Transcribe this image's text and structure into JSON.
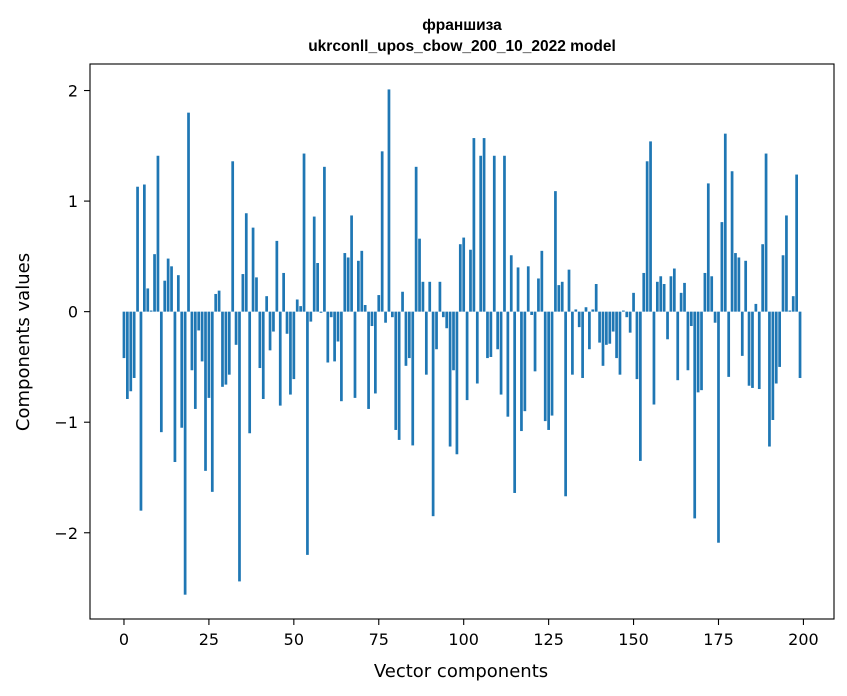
{
  "chart_data": {
    "type": "bar",
    "title_line1": "франшиза",
    "title_line2": "ukrconll_upos_cbow_200_10_2022 model",
    "xlabel": "Vector components",
    "ylabel": "Components values",
    "xlim": [
      -10,
      209
    ],
    "ylim": [
      -2.78,
      2.24
    ],
    "xticks": [
      0,
      25,
      50,
      75,
      100,
      125,
      150,
      175,
      200
    ],
    "yticks": [
      -2,
      -1,
      0,
      1,
      2
    ],
    "ytick_labels": [
      "−2",
      "−1",
      "0",
      "1",
      "2"
    ],
    "bar_color": "#1f77b4",
    "values": [
      -0.42,
      -0.79,
      -0.72,
      -0.6,
      1.13,
      -1.8,
      1.15,
      0.21,
      0.01,
      0.52,
      1.41,
      -1.09,
      0.28,
      0.48,
      0.41,
      -1.36,
      0.33,
      -1.05,
      -2.56,
      1.8,
      -0.53,
      -0.88,
      -0.17,
      -0.45,
      -1.44,
      -0.78,
      -1.63,
      0.16,
      0.19,
      -0.68,
      -0.66,
      -0.57,
      1.36,
      -0.3,
      -2.44,
      0.34,
      0.89,
      -1.1,
      0.76,
      0.31,
      -0.51,
      -0.79,
      0.14,
      -0.35,
      -0.18,
      0.64,
      -0.85,
      0.35,
      -0.2,
      -0.75,
      -0.61,
      0.11,
      0.05,
      1.43,
      -2.2,
      -0.09,
      0.86,
      0.44,
      -0.01,
      1.31,
      -0.46,
      -0.05,
      -0.45,
      -0.27,
      -0.81,
      0.53,
      0.49,
      0.87,
      -0.78,
      0.46,
      0.55,
      0.06,
      -0.88,
      -0.13,
      -0.74,
      0.15,
      1.45,
      -0.1,
      2.01,
      -0.05,
      -1.07,
      -1.16,
      0.18,
      -0.49,
      -0.42,
      -1.21,
      1.31,
      0.66,
      0.27,
      -0.57,
      0.27,
      -1.85,
      -0.34,
      0.27,
      -0.05,
      -0.15,
      -1.22,
      -0.53,
      -1.29,
      0.61,
      0.67,
      -0.8,
      0.56,
      1.57,
      -0.65,
      1.41,
      1.57,
      -0.42,
      -0.41,
      1.41,
      -0.34,
      -0.75,
      1.41,
      -0.95,
      0.51,
      -1.64,
      0.4,
      -1.08,
      -0.9,
      0.41,
      -0.03,
      -0.54,
      0.3,
      0.55,
      -0.99,
      -1.07,
      -0.94,
      1.09,
      0.24,
      0.27,
      -1.67,
      0.38,
      -0.57,
      0.02,
      -0.14,
      -0.6,
      0.04,
      -0.34,
      0.02,
      0.25,
      -0.28,
      -0.49,
      -0.3,
      -0.29,
      -0.18,
      -0.42,
      -0.57,
      0.01,
      -0.05,
      -0.19,
      0.17,
      -0.61,
      -1.35,
      0.35,
      1.36,
      1.54,
      -0.84,
      0.27,
      0.32,
      0.25,
      -0.25,
      0.32,
      0.39,
      -0.62,
      0.17,
      0.26,
      -0.53,
      -0.13,
      -1.87,
      -0.73,
      -0.71,
      0.35,
      1.16,
      0.32,
      -0.1,
      -2.09,
      0.81,
      1.61,
      -0.59,
      1.27,
      0.53,
      0.49,
      -0.4,
      0.46,
      -0.67,
      -0.69,
      0.07,
      -0.7,
      0.61,
      1.43,
      -1.22,
      -0.98,
      -0.65,
      -0.5,
      0.51,
      0.87,
      0.01,
      0.14,
      1.24,
      -0.6
    ]
  }
}
